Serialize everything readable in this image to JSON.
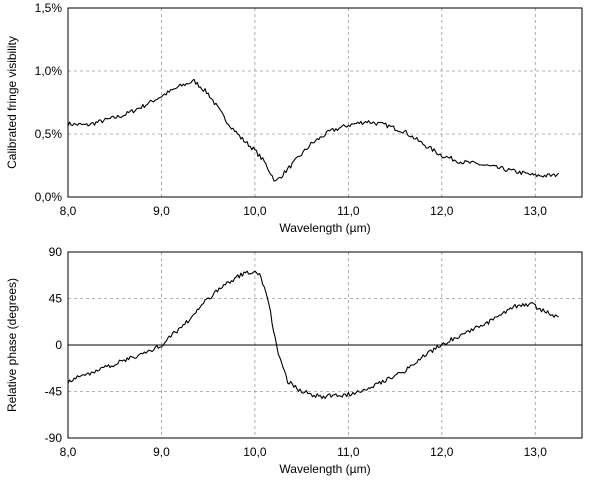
{
  "chart_data": [
    {
      "type": "line",
      "xlabel": "Wavelength (µm)",
      "ylabel": "Calibrated fringe visibility",
      "xlim": [
        8.0,
        13.5
      ],
      "ylim": [
        0.0,
        1.5
      ],
      "grid": true,
      "x_ticks": [
        "8,0",
        "9,0",
        "10,0",
        "11,0",
        "12,0",
        "13,0"
      ],
      "y_ticks": [
        "0,0%",
        "0,5%",
        "1,0%",
        "1,5%"
      ],
      "series": [
        {
          "x": [
            8.0,
            8.2,
            8.4,
            8.6,
            8.8,
            9.0,
            9.2,
            9.35,
            9.5,
            9.7,
            9.85,
            10.0,
            10.1,
            10.22,
            10.3,
            10.45,
            10.6,
            10.8,
            11.0,
            11.2,
            11.4,
            11.6,
            11.8,
            12.0,
            12.2,
            12.4,
            12.6,
            12.8,
            13.0,
            13.2,
            13.25
          ],
          "y": [
            0.58,
            0.57,
            0.61,
            0.65,
            0.72,
            0.8,
            0.88,
            0.92,
            0.82,
            0.6,
            0.47,
            0.37,
            0.28,
            0.12,
            0.18,
            0.3,
            0.42,
            0.52,
            0.57,
            0.6,
            0.57,
            0.52,
            0.42,
            0.33,
            0.28,
            0.26,
            0.23,
            0.2,
            0.17,
            0.17,
            0.19
          ]
        }
      ]
    },
    {
      "type": "line",
      "xlabel": "Wavelength (µm)",
      "ylabel": "Relative phase (degrees)",
      "xlim": [
        8.0,
        13.5
      ],
      "ylim": [
        -90,
        90
      ],
      "grid": true,
      "x_ticks": [
        "8,0",
        "9,0",
        "10,0",
        "11,0",
        "12,0",
        "13,0"
      ],
      "y_ticks": [
        "-90",
        "-45",
        "0",
        "45",
        "90"
      ],
      "series": [
        {
          "x": [
            8.0,
            8.3,
            8.6,
            8.9,
            9.0,
            9.3,
            9.5,
            9.7,
            9.9,
            10.05,
            10.15,
            10.25,
            10.35,
            10.5,
            10.7,
            11.0,
            11.3,
            11.6,
            11.9,
            12.2,
            12.5,
            12.8,
            12.95,
            13.1,
            13.25
          ],
          "y": [
            -35,
            -25,
            -15,
            -5,
            0,
            25,
            45,
            60,
            70,
            70,
            40,
            -10,
            -35,
            -45,
            -50,
            -48,
            -38,
            -25,
            -5,
            10,
            22,
            38,
            40,
            32,
            27
          ]
        }
      ]
    }
  ]
}
